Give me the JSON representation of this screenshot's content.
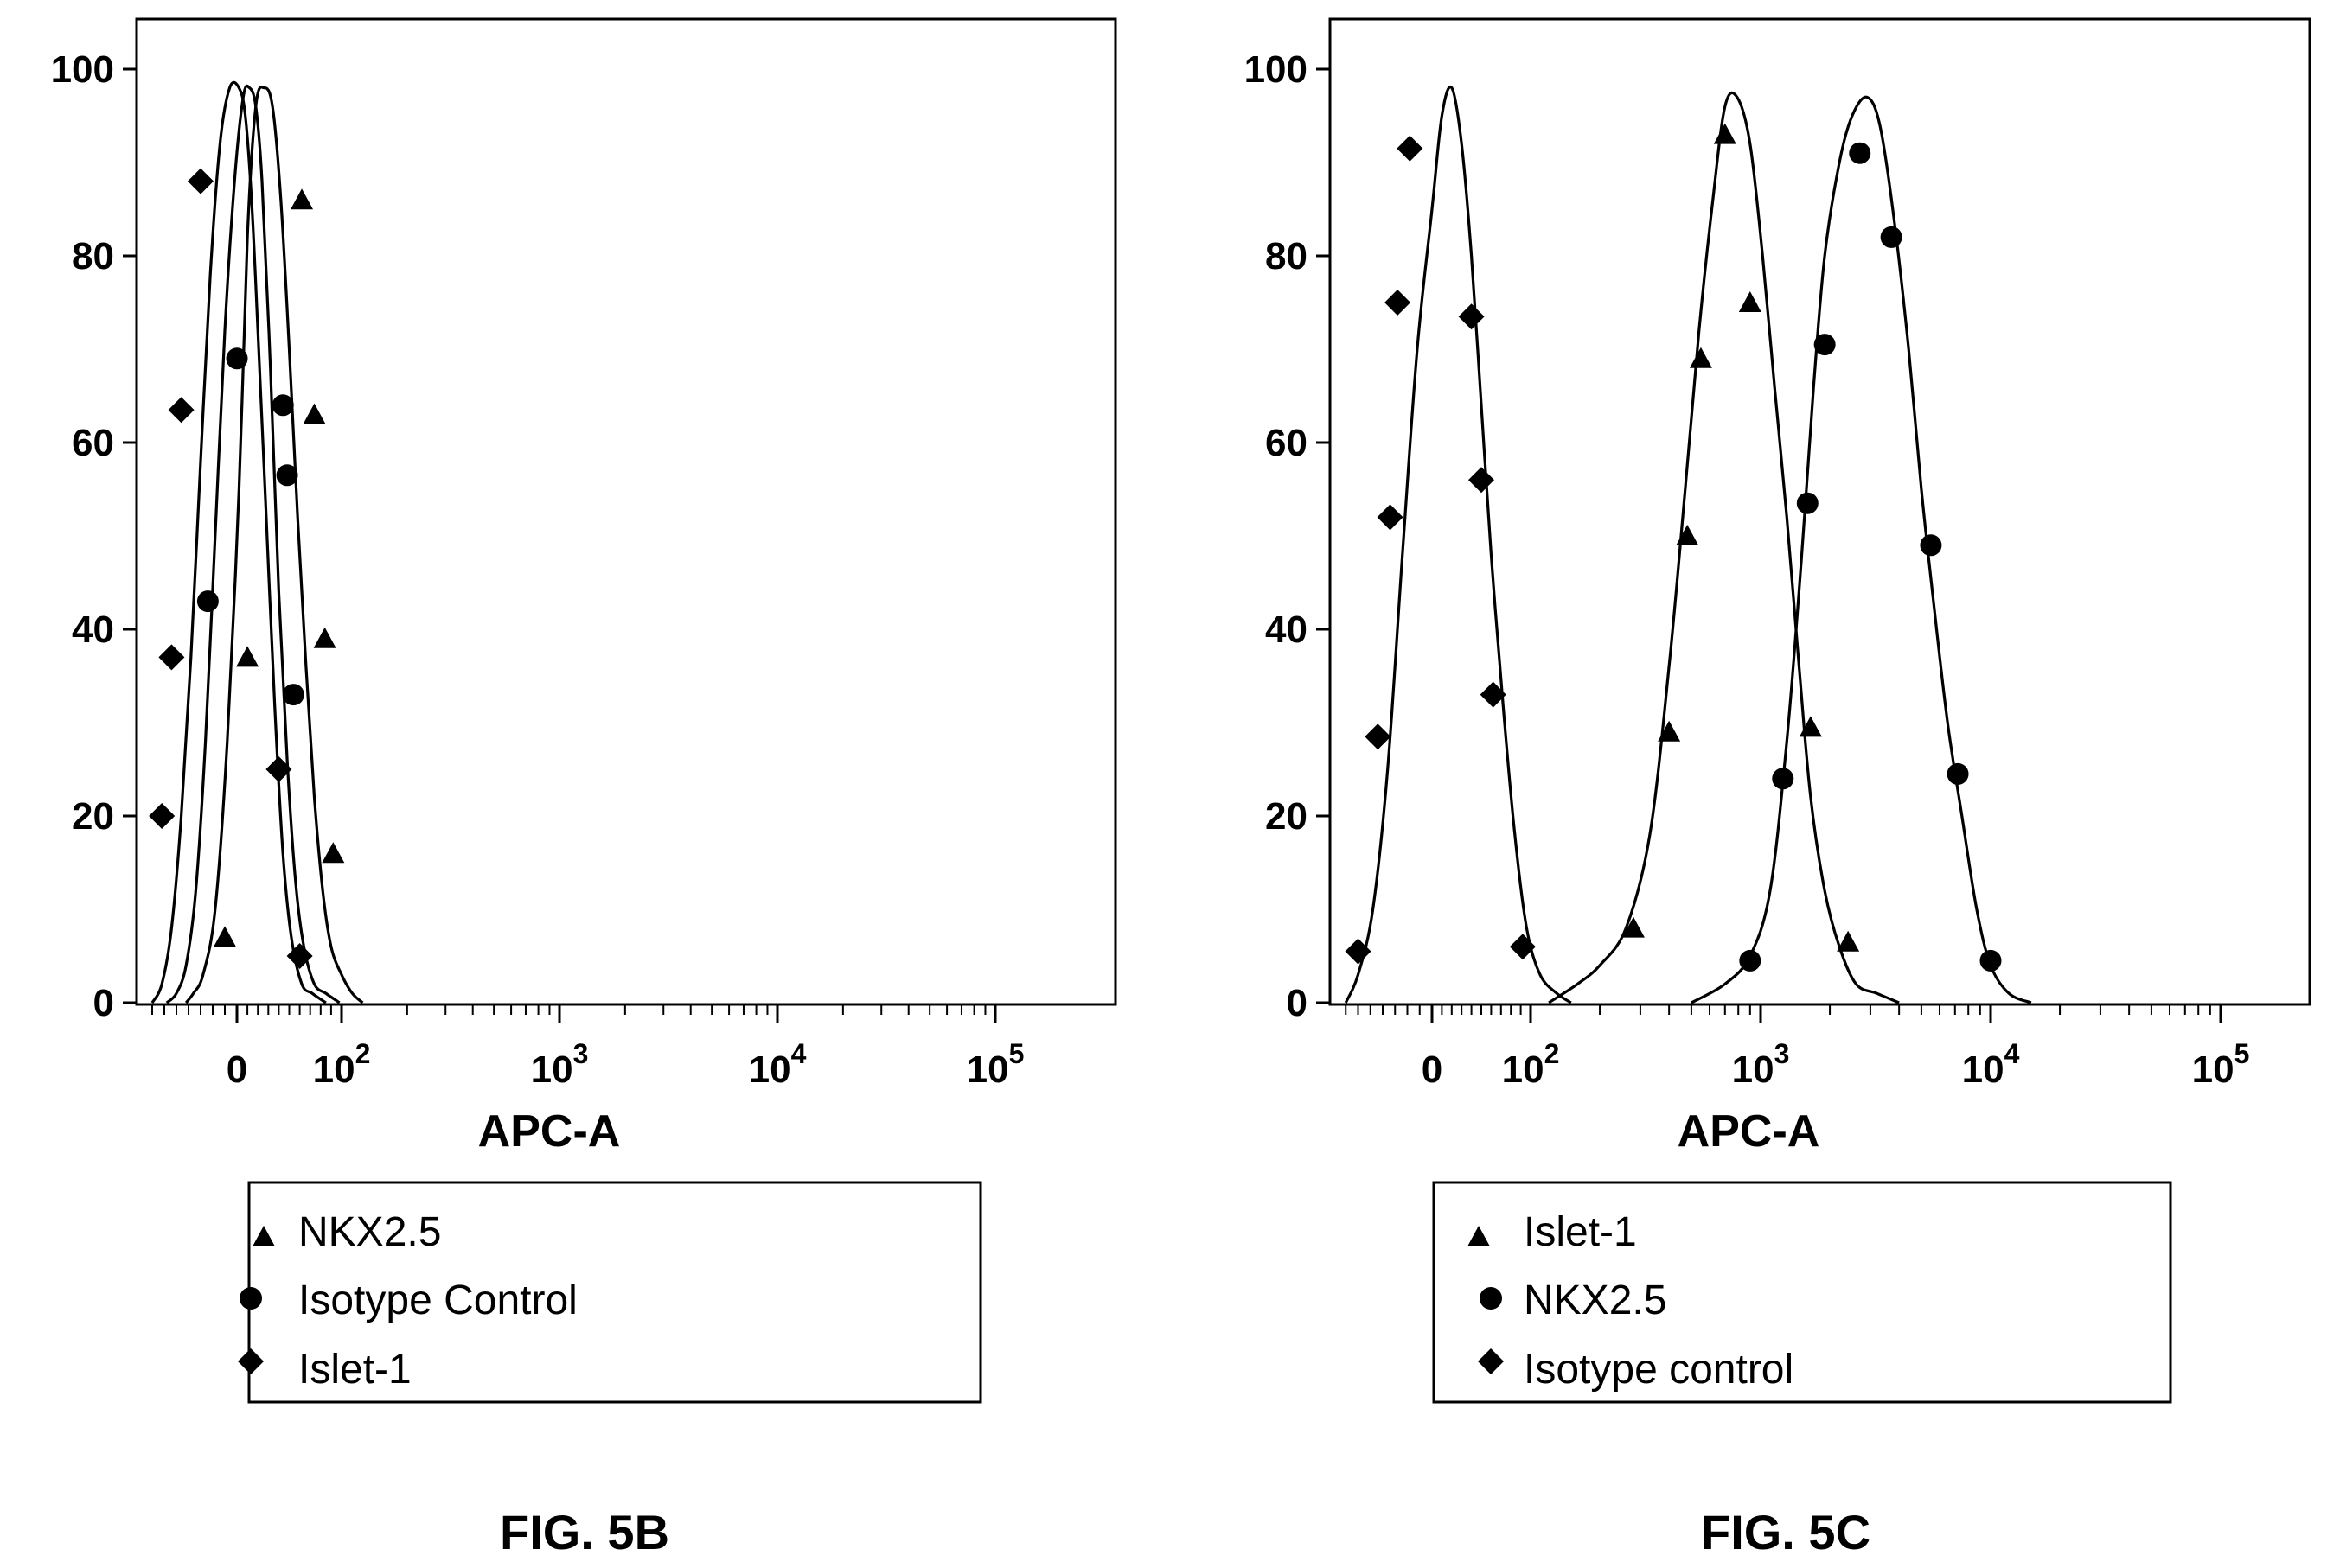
{
  "chart_data": [
    {
      "type": "line",
      "caption": "FIG. 5B",
      "xlabel": "APC-A",
      "ylabel": "",
      "x_scale": "biexponential",
      "xlim": [
        -80,
        200000
      ],
      "ylim": [
        0,
        100
      ],
      "x_tick_labels": [
        {
          "value": 0,
          "base": "0",
          "exp": ""
        },
        {
          "value": 100,
          "base": "10",
          "exp": "2"
        },
        {
          "value": 1000,
          "base": "10",
          "exp": "3"
        },
        {
          "value": 10000,
          "base": "10",
          "exp": "4"
        },
        {
          "value": 100000,
          "base": "10",
          "exp": "5"
        }
      ],
      "y_ticks": [
        0,
        20,
        40,
        60,
        80,
        100
      ],
      "legend_position": "bottom",
      "series": [
        {
          "name": "NKX2.5",
          "marker": "triangle",
          "x": [
            -42,
            -36,
            -28,
            -18,
            -8,
            2,
            10,
            18,
            26,
            34,
            42,
            50,
            58,
            66,
            74,
            82,
            90,
            100,
            112,
            125
          ],
          "y": [
            0,
            1,
            3,
            10,
            28,
            55,
            82,
            96,
            98,
            96,
            86,
            70,
            52,
            36,
            22,
            12,
            6,
            3,
            1,
            0
          ]
        },
        {
          "name": "Isotype Control",
          "marker": "circle",
          "x": [
            -58,
            -50,
            -42,
            -34,
            -26,
            -18,
            -10,
            -2,
            6,
            12,
            18,
            24,
            32,
            40,
            48,
            56,
            64,
            74,
            85,
            98
          ],
          "y": [
            0,
            1,
            4,
            12,
            28,
            50,
            72,
            88,
            97,
            98,
            96,
            88,
            68,
            44,
            26,
            13,
            6,
            2,
            1,
            0
          ]
        },
        {
          "name": "Islet-1",
          "marker": "diamond",
          "x": [
            -70,
            -62,
            -54,
            -46,
            -38,
            -30,
            -22,
            -14,
            -6,
            2,
            8,
            14,
            20,
            28,
            36,
            44,
            52,
            62,
            72,
            85
          ],
          "y": [
            0,
            2,
            8,
            20,
            37,
            58,
            78,
            92,
            98,
            98,
            95,
            86,
            72,
            52,
            32,
            16,
            7,
            2,
            1,
            0
          ]
        }
      ],
      "markers": [
        {
          "series": "NKX2.5",
          "points": [
            [
              -10,
              7
            ],
            [
              10,
              37
            ],
            [
              62,
              86
            ],
            [
              74,
              63
            ],
            [
              84,
              39
            ],
            [
              92,
              16
            ]
          ]
        },
        {
          "series": "Isotype Control",
          "points": [
            [
              -24,
              43
            ],
            [
              0,
              69
            ],
            [
              44,
              64
            ],
            [
              48,
              56.5
            ],
            [
              54,
              33
            ]
          ]
        },
        {
          "series": "Islet-1",
          "points": [
            [
              -62,
              20
            ],
            [
              -54,
              37
            ],
            [
              -46,
              63.5
            ],
            [
              -30,
              88
            ],
            [
              40,
              25
            ],
            [
              60,
              5
            ]
          ]
        }
      ]
    },
    {
      "type": "line",
      "caption": "FIG. 5C",
      "xlabel": "APC-A",
      "ylabel": "",
      "x_scale": "biexponential",
      "xlim": [
        -80,
        200000
      ],
      "ylim": [
        0,
        100
      ],
      "x_tick_labels": [
        {
          "value": 0,
          "base": "0",
          "exp": ""
        },
        {
          "value": 100,
          "base": "10",
          "exp": "2"
        },
        {
          "value": 1000,
          "base": "10",
          "exp": "3"
        },
        {
          "value": 10000,
          "base": "10",
          "exp": "4"
        },
        {
          "value": 100000,
          "base": "10",
          "exp": "5"
        }
      ],
      "y_ticks": [
        0,
        20,
        40,
        60,
        80,
        100
      ],
      "legend_position": "bottom",
      "series": [
        {
          "name": "Islet-1",
          "marker": "triangle",
          "x": [
            120,
            160,
            200,
            260,
            330,
            400,
            470,
            540,
            620,
            700,
            790,
            900,
            1020,
            1150,
            1300,
            1470,
            1650,
            1900,
            2200,
            2600,
            3200,
            4000
          ],
          "y": [
            0,
            2,
            4,
            8,
            18,
            36,
            55,
            72,
            86,
            96,
            97,
            92,
            80,
            66,
            52,
            36,
            22,
            12,
            6,
            2,
            1,
            0
          ]
        },
        {
          "name": "NKX2.5",
          "marker": "circle",
          "x": [
            500,
            700,
            900,
            1100,
            1300,
            1500,
            1700,
            1900,
            2200,
            2500,
            2900,
            3300,
            3800,
            4400,
            5000,
            5700,
            6500,
            7500,
            8700,
            10000,
            12000,
            15000
          ],
          "y": [
            0,
            2,
            5,
            12,
            28,
            47,
            66,
            80,
            90,
            95,
            97,
            94,
            84,
            70,
            55,
            42,
            30,
            20,
            10,
            4,
            1,
            0
          ]
        },
        {
          "name": "Isotype control",
          "marker": "diamond",
          "x": [
            -70,
            -60,
            -48,
            -36,
            -24,
            -12,
            0,
            10,
            20,
            30,
            40,
            50,
            60,
            72,
            84,
            96,
            110,
            130,
            150
          ],
          "y": [
            0,
            3,
            10,
            25,
            48,
            70,
            85,
            95,
            98,
            92,
            80,
            64,
            48,
            32,
            18,
            8,
            3,
            1,
            0
          ]
        }
      ],
      "markers": [
        {
          "series": "Islet-1",
          "points": [
            [
              280,
              8
            ],
            [
              400,
              29
            ],
            [
              480,
              50
            ],
            [
              550,
              69
            ],
            [
              700,
              93
            ],
            [
              900,
              75
            ],
            [
              1650,
              29.5
            ],
            [
              2400,
              6.5
            ]
          ]
        },
        {
          "series": "NKX2.5",
          "points": [
            [
              900,
              4.5
            ],
            [
              1250,
              24
            ],
            [
              1600,
              53.5
            ],
            [
              1900,
              70.5
            ],
            [
              2700,
              91
            ],
            [
              3700,
              82
            ],
            [
              5500,
              49
            ],
            [
              7200,
              24.5
            ],
            [
              10000,
              4.5
            ]
          ]
        },
        {
          "series": "Isotype control",
          "points": [
            [
              -60,
              5.5
            ],
            [
              -44,
              28.5
            ],
            [
              -34,
              52
            ],
            [
              -28,
              75
            ],
            [
              -18,
              91.5
            ],
            [
              40,
              73.5
            ],
            [
              50,
              56
            ],
            [
              62,
              33
            ],
            [
              92,
              6
            ]
          ]
        }
      ]
    }
  ]
}
